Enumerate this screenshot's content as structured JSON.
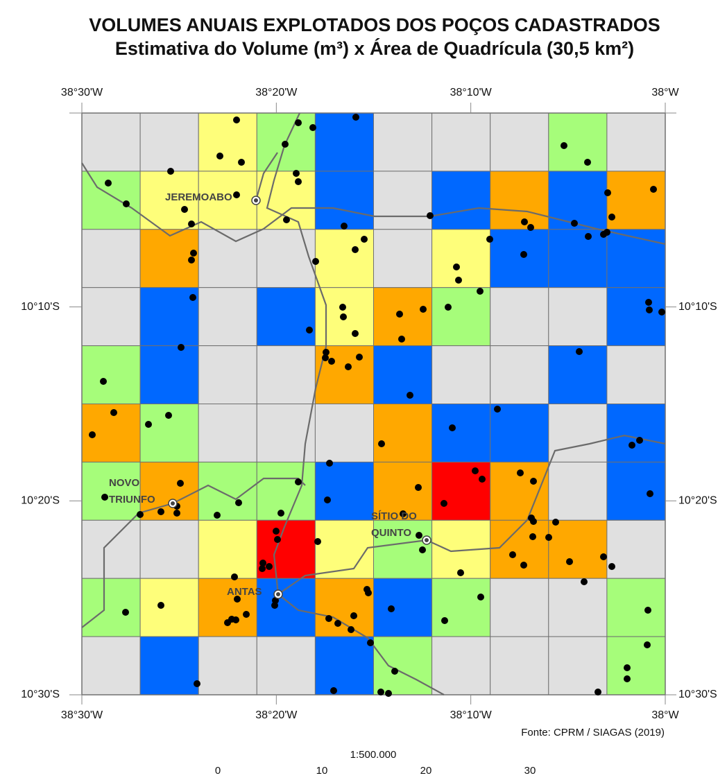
{
  "header": {
    "title": "VOLUMES ANUAIS EXPLOTADOS DOS POÇOS CADASTRADOS",
    "subtitle": "Estimativa do Volume (m³) x Área de Quadrícula (30,5 km²)"
  },
  "longitudes": [
    "38°30'W",
    "38°20'W",
    "38°10'W",
    "38°W"
  ],
  "latitudes": [
    "10°10'S",
    "10°20'S",
    "10°30'S"
  ],
  "places": [
    {
      "label_lines": [
        "JEREMOABO"
      ]
    },
    {
      "label_lines": [
        "NOVO",
        "TRIUNFO"
      ]
    },
    {
      "label_lines": [
        "SÍTIO DO",
        "QUINTO"
      ]
    },
    {
      "label_lines": [
        "ANTAS"
      ]
    }
  ],
  "source": "Fonte: CPRM / SIAGAS (2019)",
  "scale": {
    "ratio": "1:500.000",
    "ticks": [
      0,
      10,
      20,
      30
    ]
  }
}
